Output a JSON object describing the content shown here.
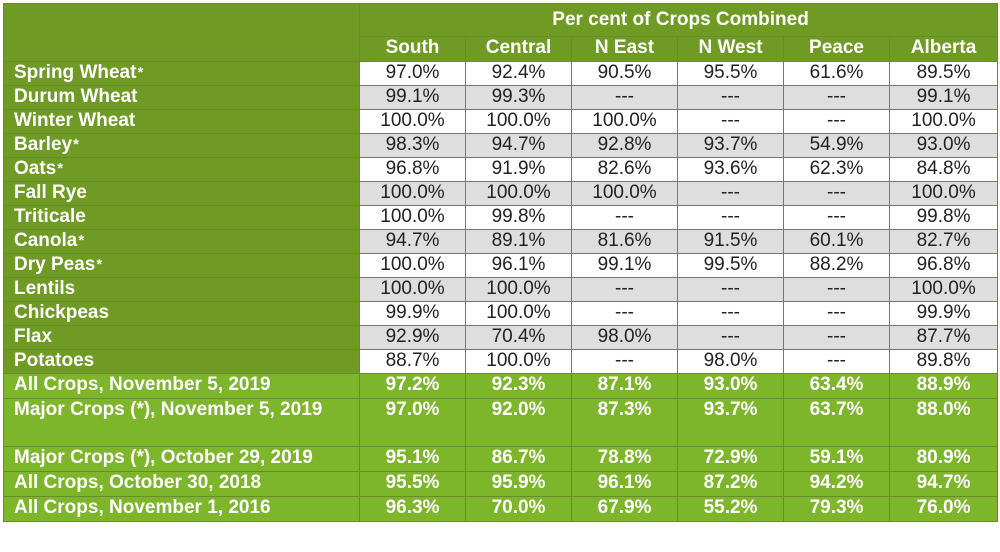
{
  "table": {
    "super_header": "Per cent of Crops Combined",
    "columns": [
      "South",
      "Central",
      "N East",
      "N West",
      "Peace",
      "Alberta"
    ],
    "rows": [
      {
        "label": "Spring Wheat",
        "star": "*",
        "values": [
          "97.0%",
          "92.4%",
          "90.5%",
          "95.5%",
          "61.6%",
          "89.5%"
        ]
      },
      {
        "label": "Durum Wheat",
        "star": "",
        "values": [
          "99.1%",
          "99.3%",
          "---",
          "---",
          "---",
          "99.1%"
        ]
      },
      {
        "label": "Winter Wheat",
        "star": "",
        "values": [
          "100.0%",
          "100.0%",
          "100.0%",
          "---",
          "---",
          "100.0%"
        ]
      },
      {
        "label": "Barley",
        "star": "*",
        "values": [
          "98.3%",
          "94.7%",
          "92.8%",
          "93.7%",
          "54.9%",
          "93.0%"
        ]
      },
      {
        "label": "Oats",
        "star": "*",
        "values": [
          "96.8%",
          "91.9%",
          "82.6%",
          "93.6%",
          "62.3%",
          "84.8%"
        ]
      },
      {
        "label": "Fall Rye",
        "star": "",
        "values": [
          "100.0%",
          "100.0%",
          "100.0%",
          "---",
          "---",
          "100.0%"
        ]
      },
      {
        "label": "Triticale",
        "star": "",
        "values": [
          "100.0%",
          "99.8%",
          "---",
          "---",
          "---",
          "99.8%"
        ]
      },
      {
        "label": "Canola",
        "star": "*",
        "values": [
          "94.7%",
          "89.1%",
          "81.6%",
          "91.5%",
          "60.1%",
          "82.7%"
        ]
      },
      {
        "label": "Dry Peas",
        "star": "*",
        "values": [
          "100.0%",
          "96.1%",
          "99.1%",
          "99.5%",
          "88.2%",
          "96.8%"
        ]
      },
      {
        "label": "Lentils",
        "star": "",
        "values": [
          "100.0%",
          "100.0%",
          "---",
          "---",
          "---",
          "100.0%"
        ]
      },
      {
        "label": "Chickpeas",
        "star": "",
        "values": [
          "99.9%",
          "100.0%",
          "---",
          "---",
          "---",
          "99.9%"
        ]
      },
      {
        "label": "Flax",
        "star": "",
        "values": [
          "92.9%",
          "70.4%",
          "98.0%",
          "---",
          "---",
          "87.7%"
        ]
      },
      {
        "label": "Potatoes",
        "star": "",
        "values": [
          "88.7%",
          "100.0%",
          "---",
          "98.0%",
          "---",
          "89.8%"
        ]
      }
    ],
    "summary": [
      {
        "label": "All Crops, November 5, 2019",
        "values": [
          "97.2%",
          "92.3%",
          "87.1%",
          "93.0%",
          "63.4%",
          "88.9%"
        ]
      },
      {
        "label": "Major Crops (*), November 5, 2019",
        "values": [
          "97.0%",
          "92.0%",
          "87.3%",
          "93.7%",
          "63.7%",
          "88.0%"
        ]
      },
      {
        "label": "Major Crops (*), October 29, 2019",
        "values": [
          "95.1%",
          "86.7%",
          "78.8%",
          "72.9%",
          "59.1%",
          "80.9%"
        ]
      },
      {
        "label": "All Crops, October 30, 2018",
        "values": [
          "95.5%",
          "95.9%",
          "96.1%",
          "87.2%",
          "94.2%",
          "94.7%"
        ]
      },
      {
        "label": "All Crops, November 1, 2016",
        "values": [
          "96.3%",
          "70.0%",
          "67.9%",
          "55.2%",
          "79.3%",
          "76.0%"
        ]
      }
    ]
  },
  "colors": {
    "header_green": "#6f9a24",
    "summary_green": "#7db52b",
    "row_gray": "#dedede"
  }
}
